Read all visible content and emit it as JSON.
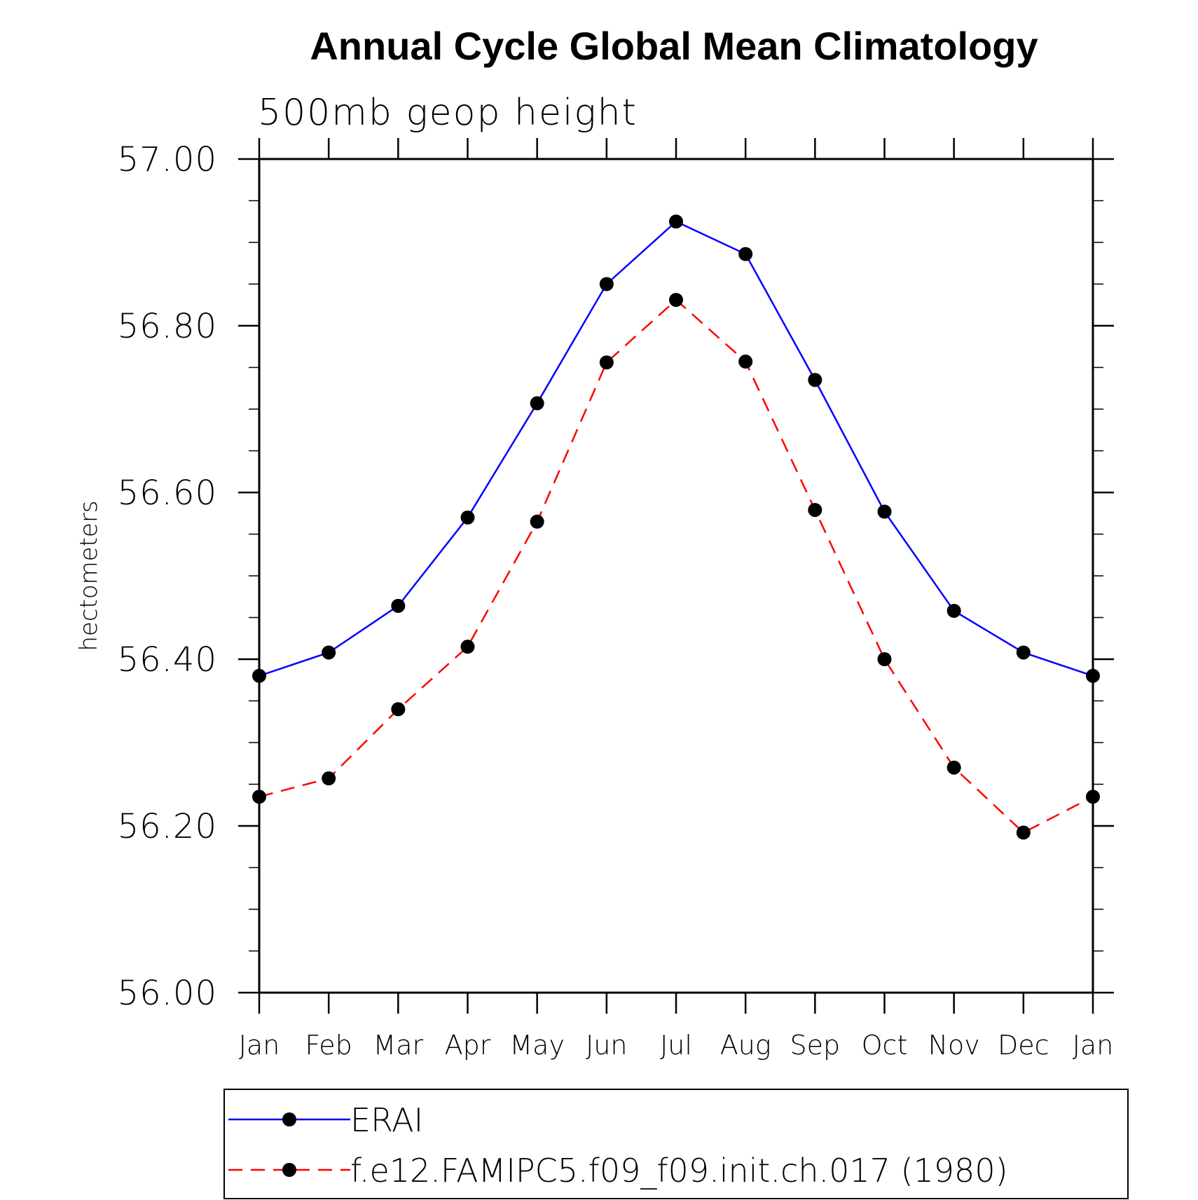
{
  "chart_data": {
    "type": "line",
    "title": "Annual Cycle Global Mean Climatology",
    "subtitle": "500mb geop height",
    "ylabel": "hectometers",
    "xlabel": "",
    "categories": [
      "Jan",
      "Feb",
      "Mar",
      "Apr",
      "May",
      "Jun",
      "Jul",
      "Aug",
      "Sep",
      "Oct",
      "Nov",
      "Dec",
      "Jan"
    ],
    "ylim": [
      56.0,
      57.0
    ],
    "yticks": [
      "56.00",
      "56.20",
      "56.40",
      "56.60",
      "56.80",
      "57.00"
    ],
    "grid": false,
    "legend_position": "bottom",
    "series": [
      {
        "name": "ERAI",
        "color": "#0000ff",
        "line_style": "solid",
        "marker": "filled-circle",
        "values": [
          56.38,
          56.408,
          56.464,
          56.57,
          56.707,
          56.85,
          56.925,
          56.886,
          56.735,
          56.577,
          56.458,
          56.408,
          56.38
        ]
      },
      {
        "name": "f.e12.FAMIPC5.f09_f09.init.ch.017 (1980)",
        "color": "#ff0000",
        "line_style": "dashed",
        "marker": "filled-circle",
        "values": [
          56.235,
          56.257,
          56.34,
          56.415,
          56.565,
          56.756,
          56.831,
          56.757,
          56.579,
          56.4,
          56.27,
          56.192,
          56.235
        ]
      }
    ]
  }
}
